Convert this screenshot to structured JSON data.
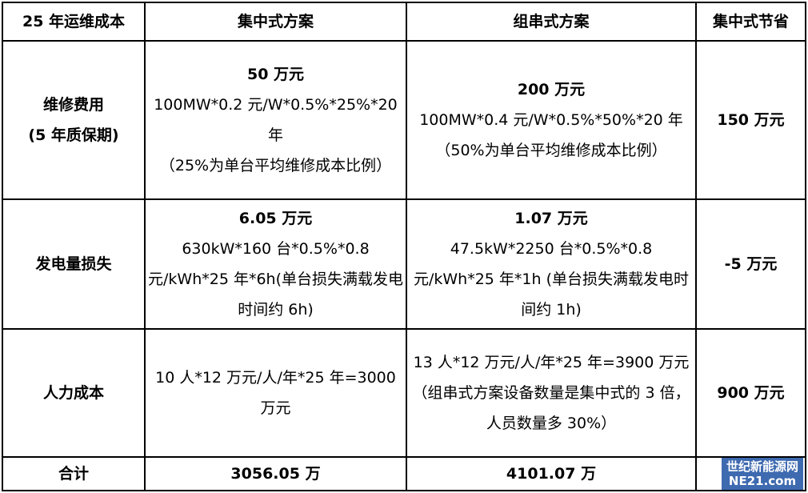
{
  "table": {
    "header": [
      "25 年运维成本",
      "集中式方案",
      "组串式方案",
      "集中式节省"
    ],
    "rows": [
      [
        {
          "strong": [
            "维修费用",
            "(5 年质保期)"
          ]
        },
        {
          "strong": [
            "50 万元"
          ],
          "normal": [
            "100MW*0.2 元/W*0.5%*25%*20 年",
            "（25%为单台平均维修成本比例）"
          ]
        },
        {
          "strong": [
            "200 万元"
          ],
          "normal": [
            "100MW*0.4 元/W*0.5%*50%*20 年",
            "（50%为单台平均维修成本比例）"
          ]
        },
        {
          "strong": [
            "150 万元"
          ]
        }
      ],
      [
        {
          "strong": [
            "发电量损失"
          ]
        },
        {
          "strong": [
            "6.05 万元"
          ],
          "normal": [
            "630kW*160 台*0.5%*0.8 元/kWh*25 年*6h(单台损失满载发电时间约 6h)"
          ]
        },
        {
          "strong": [
            "1.07 万元"
          ],
          "normal": [
            "47.5kW*2250 台*0.5%*0.8 元/kWh*25 年*1h (单台损失满载发电时间约 1h)"
          ]
        },
        {
          "strong": [
            "-5 万元"
          ]
        }
      ],
      [
        {
          "strong": [
            "人力成本"
          ]
        },
        {
          "normal": [
            "10 人*12 万元/人/年*25 年=3000 万元"
          ]
        },
        {
          "normal": [
            "13 人*12 万元/人/年*25 年=3900 万元",
            "（组串式方案设备数量是集中式的 3 倍，人员数量多 30%）"
          ]
        },
        {
          "strong": [
            "900 万元"
          ]
        }
      ],
      [
        {
          "strong": [
            "合计"
          ]
        },
        {
          "strong": [
            "3056.05 万"
          ]
        },
        {
          "strong": [
            "4101.07 万"
          ]
        },
        {}
      ]
    ]
  },
  "watermark": {
    "title": "世纪新能源网",
    "site": "NE21.com"
  }
}
